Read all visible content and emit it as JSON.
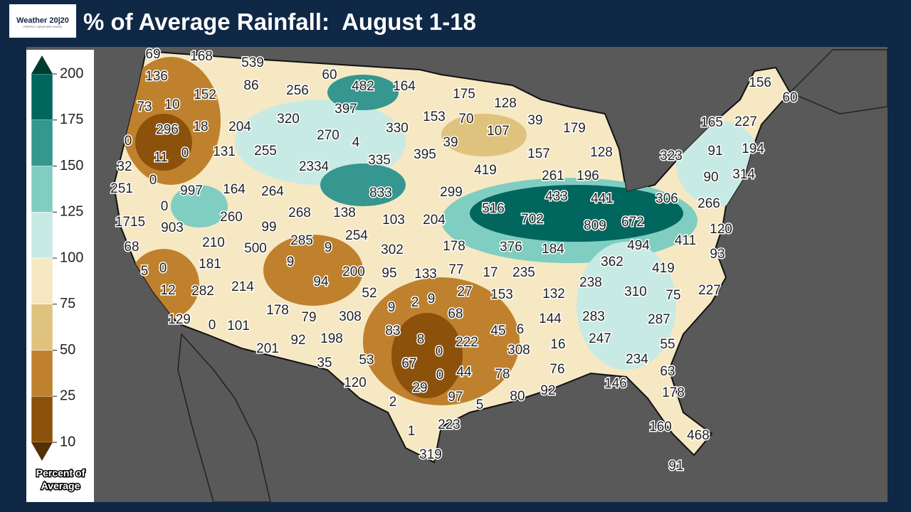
{
  "header": {
    "logo": "Weather 20|20",
    "logo_tagline": "PERFECT WEATHER VISION",
    "title": "% of Average Rainfall:  August 1-18"
  },
  "legend": {
    "title": "Percent of Average",
    "ticks": [
      10,
      25,
      50,
      75,
      100,
      125,
      150,
      175,
      200
    ],
    "colors": [
      "#8c510a",
      "#bf812d",
      "#dfc27d",
      "#f6e8c3",
      "#c7eae5",
      "#80cdc1",
      "#35978f",
      "#01665e"
    ],
    "extend_colors": [
      "#543005",
      "#003c30"
    ]
  },
  "stations": [
    69,
    168,
    539,
    136,
    86,
    60,
    482,
    164,
    175,
    128,
    156,
    60,
    73,
    10,
    152,
    397,
    153,
    70,
    39,
    179,
    165,
    227,
    296,
    18,
    204,
    320,
    256,
    270,
    4,
    330,
    107,
    39,
    128,
    91,
    194,
    0,
    11,
    0,
    131,
    255,
    2334,
    335,
    395,
    157,
    323,
    90,
    314,
    32,
    0,
    419,
    261,
    196,
    251,
    997,
    164,
    264,
    833,
    299,
    433,
    441,
    306,
    266,
    0,
    138,
    516,
    702,
    1715,
    903,
    260,
    268,
    103,
    204,
    809,
    672,
    120,
    99,
    285,
    9,
    254,
    411,
    494,
    68,
    210,
    500,
    302,
    178,
    376,
    184,
    93,
    5,
    0,
    181,
    9,
    362,
    419,
    12,
    282,
    214,
    94,
    200,
    95,
    133,
    77,
    17,
    235,
    238,
    227,
    178,
    52,
    9,
    27,
    153,
    132,
    310,
    75,
    129,
    79,
    308,
    9,
    2,
    68,
    144,
    283,
    287,
    0,
    101,
    92,
    198,
    83,
    8,
    45,
    6,
    247,
    201,
    0,
    222,
    308,
    16,
    55,
    35,
    53,
    67,
    0,
    44,
    78,
    76,
    234,
    63,
    120,
    29,
    97,
    80,
    92,
    146,
    178,
    2,
    5,
    1,
    223,
    160,
    468,
    319,
    91
  ]
}
